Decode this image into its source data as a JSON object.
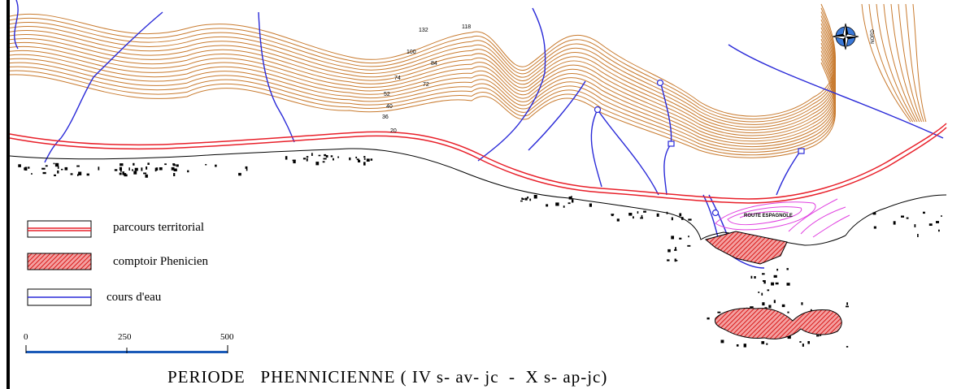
{
  "title": "PERIODE   PHENNICIENNE ( IV s- av- jc  -  X s- ap-jc)",
  "legend": {
    "items": [
      {
        "label": "parcours territorial",
        "symbol": "red-double-line"
      },
      {
        "label": "comptoir Phenicien",
        "symbol": "red-hatched-area"
      },
      {
        "label": "cours d'eau",
        "symbol": "blue-line"
      }
    ]
  },
  "scale_bar": {
    "ticks": [
      "0",
      "250",
      "500"
    ]
  },
  "contour_labels": [
    "132",
    "118",
    "100",
    "84",
    "74",
    "72",
    "52",
    "40",
    "36",
    "20"
  ],
  "place_label": "ROUTE ESPAGNOLE",
  "north_arrow": {
    "icon": "compass-rose-icon",
    "label": "NORD"
  },
  "colors": {
    "contour": "#c87a2e",
    "route": "#e8202a",
    "river": "#2a2ad8",
    "hatch": "#e83030",
    "magenta": "#e040e0",
    "coast": "#000000",
    "scale_bar": "#1a5ab8"
  }
}
